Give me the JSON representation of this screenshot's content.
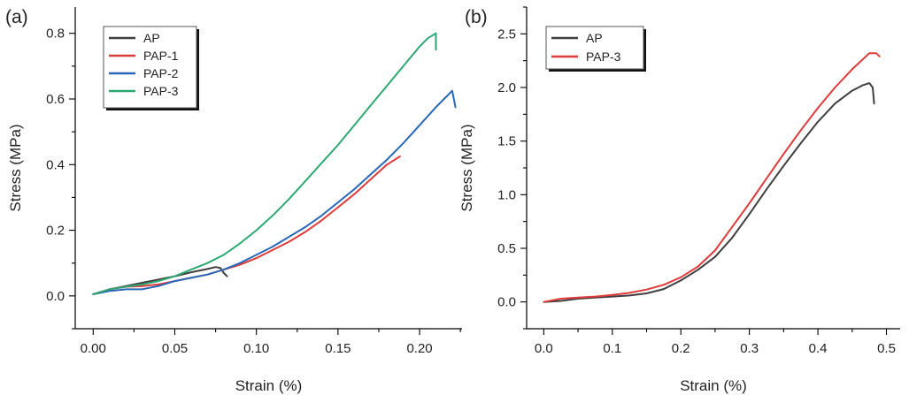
{
  "chart_data": [
    {
      "type": "line",
      "panel_label": "(a)",
      "xlabel": "Strain (%)",
      "ylabel": "Stress (MPa)",
      "xlim": [
        -0.011,
        0.226
      ],
      "ylim": [
        -0.1,
        0.88
      ],
      "xticks": [
        "0.00",
        "0.05",
        "0.10",
        "0.15",
        "0.20"
      ],
      "xtick_values": [
        0,
        0.05,
        0.1,
        0.15,
        0.2
      ],
      "yticks": [
        "0.0",
        "0.2",
        "0.4",
        "0.6",
        "0.8"
      ],
      "ytick_values": [
        0,
        0.2,
        0.4,
        0.6,
        0.8
      ],
      "legend_position": "top-left",
      "grid": false,
      "series": [
        {
          "name": "AP",
          "color": "#3f3f3f",
          "x": [
            0,
            0.01,
            0.02,
            0.03,
            0.04,
            0.05,
            0.06,
            0.07,
            0.075,
            0.078,
            0.08,
            0.082
          ],
          "y": [
            0.005,
            0.02,
            0.03,
            0.04,
            0.05,
            0.06,
            0.072,
            0.082,
            0.088,
            0.085,
            0.07,
            0.06
          ]
        },
        {
          "name": "PAP-1",
          "color": "#e03b3b",
          "x": [
            0,
            0.01,
            0.02,
            0.03,
            0.04,
            0.05,
            0.06,
            0.07,
            0.08,
            0.09,
            0.1,
            0.11,
            0.12,
            0.13,
            0.14,
            0.15,
            0.16,
            0.17,
            0.18,
            0.188
          ],
          "y": [
            0.005,
            0.02,
            0.028,
            0.03,
            0.035,
            0.045,
            0.055,
            0.065,
            0.08,
            0.095,
            0.115,
            0.14,
            0.165,
            0.195,
            0.23,
            0.27,
            0.31,
            0.355,
            0.4,
            0.425
          ]
        },
        {
          "name": "PAP-2",
          "color": "#2868b8",
          "x": [
            0,
            0.01,
            0.02,
            0.03,
            0.04,
            0.05,
            0.06,
            0.07,
            0.08,
            0.09,
            0.1,
            0.11,
            0.12,
            0.13,
            0.14,
            0.15,
            0.16,
            0.17,
            0.18,
            0.19,
            0.2,
            0.21,
            0.215,
            0.22,
            0.222
          ],
          "y": [
            0.005,
            0.015,
            0.02,
            0.02,
            0.03,
            0.045,
            0.055,
            0.065,
            0.08,
            0.1,
            0.125,
            0.15,
            0.18,
            0.21,
            0.245,
            0.285,
            0.325,
            0.37,
            0.415,
            0.465,
            0.52,
            0.575,
            0.6,
            0.625,
            0.575
          ]
        },
        {
          "name": "PAP-3",
          "color": "#2da872",
          "x": [
            0,
            0.01,
            0.02,
            0.03,
            0.04,
            0.05,
            0.06,
            0.07,
            0.08,
            0.09,
            0.1,
            0.11,
            0.12,
            0.13,
            0.14,
            0.15,
            0.16,
            0.17,
            0.18,
            0.19,
            0.2,
            0.205,
            0.21,
            0.21
          ],
          "y": [
            0.005,
            0.02,
            0.028,
            0.035,
            0.045,
            0.06,
            0.08,
            0.1,
            0.125,
            0.16,
            0.2,
            0.245,
            0.295,
            0.35,
            0.405,
            0.46,
            0.52,
            0.58,
            0.64,
            0.7,
            0.76,
            0.785,
            0.8,
            0.75
          ]
        }
      ]
    },
    {
      "type": "line",
      "panel_label": "(b)",
      "xlabel": "Strain (%)",
      "ylabel": "Stress (MPa)",
      "xlim": [
        -0.025,
        0.52
      ],
      "ylim": [
        -0.25,
        2.75
      ],
      "xticks": [
        "0.0",
        "0.1",
        "0.2",
        "0.3",
        "0.4",
        "0.5"
      ],
      "xtick_values": [
        0,
        0.1,
        0.2,
        0.3,
        0.4,
        0.5
      ],
      "yticks": [
        "0.0",
        "0.5",
        "1.0",
        "1.5",
        "2.0",
        "2.5"
      ],
      "ytick_values": [
        0,
        0.5,
        1,
        1.5,
        2,
        2.5
      ],
      "legend_position": "top-left",
      "grid": false,
      "series": [
        {
          "name": "AP",
          "color": "#3f3f3f",
          "x": [
            0,
            0.025,
            0.05,
            0.075,
            0.1,
            0.125,
            0.15,
            0.175,
            0.2,
            0.225,
            0.25,
            0.275,
            0.3,
            0.325,
            0.35,
            0.375,
            0.4,
            0.425,
            0.45,
            0.465,
            0.475,
            0.48,
            0.482
          ],
          "y": [
            0,
            0.01,
            0.03,
            0.04,
            0.05,
            0.06,
            0.08,
            0.12,
            0.2,
            0.3,
            0.42,
            0.6,
            0.82,
            1.05,
            1.27,
            1.48,
            1.68,
            1.85,
            1.97,
            2.02,
            2.04,
            2.0,
            1.85
          ]
        },
        {
          "name": "PAP-3",
          "color": "#e03b3b",
          "x": [
            0,
            0.025,
            0.05,
            0.075,
            0.1,
            0.125,
            0.15,
            0.175,
            0.2,
            0.225,
            0.25,
            0.275,
            0.3,
            0.325,
            0.35,
            0.375,
            0.4,
            0.425,
            0.45,
            0.475,
            0.485,
            0.49
          ],
          "y": [
            0,
            0.03,
            0.04,
            0.05,
            0.065,
            0.085,
            0.115,
            0.16,
            0.23,
            0.33,
            0.48,
            0.7,
            0.92,
            1.15,
            1.38,
            1.6,
            1.81,
            2.0,
            2.17,
            2.32,
            2.32,
            2.29
          ]
        }
      ]
    }
  ]
}
